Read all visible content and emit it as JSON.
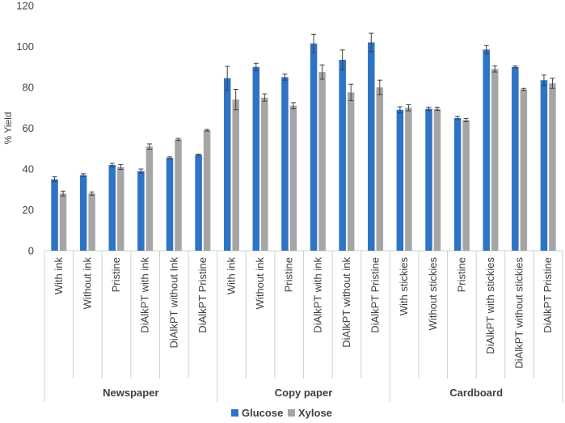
{
  "chart_data": {
    "type": "bar",
    "ylabel": "% Yield",
    "ylim": [
      0,
      120
    ],
    "yticks": [
      0,
      20,
      40,
      60,
      80,
      100,
      120
    ],
    "grid": false,
    "legend_position": "bottom-center",
    "colors": {
      "Glucose": "#2e74c6",
      "Xylose": "#a5a5a5",
      "error_bar": "#404040",
      "axis": "#d0d0d0"
    },
    "groups": [
      {
        "name": "Newspaper",
        "categories": [
          "With ink",
          "Without ink",
          "Pristine",
          "DiAlkPT with ink",
          "DiAlkPT without Ink",
          "DiAlkPT Pristine"
        ]
      },
      {
        "name": "Copy paper",
        "categories": [
          "With ink",
          "Without ink",
          "Pristine",
          "DiAlkPT with ink",
          "DiAlkPT without ink",
          "DiAlkPT Pristine"
        ]
      },
      {
        "name": "Cardboard",
        "categories": [
          "With stickies",
          "Without stickies",
          "Pristine",
          "DiAlkPT with stickies",
          "DiAlkPT without stickies",
          "DiAlkPT Pristine"
        ]
      }
    ],
    "series": [
      {
        "name": "Glucose",
        "values": [
          35,
          37,
          42,
          39,
          45.5,
          47,
          84.5,
          90,
          85,
          101.5,
          93.5,
          102,
          69,
          69.5,
          65,
          98.5,
          90,
          83.5
        ],
        "errors": [
          1.2,
          0.7,
          0.8,
          1.0,
          0.5,
          0.3,
          5.8,
          1.8,
          1.5,
          4.5,
          4.8,
          4.5,
          1.5,
          0.8,
          0.8,
          2.0,
          0.5,
          2.5
        ]
      },
      {
        "name": "Xylose",
        "values": [
          28,
          28,
          41,
          51,
          54.5,
          59,
          74,
          75,
          71,
          87.5,
          77.5,
          80,
          70,
          69.5,
          64,
          89,
          79,
          82
        ],
        "errors": [
          1.2,
          0.8,
          1.2,
          1.3,
          0.5,
          0.4,
          5.0,
          1.8,
          1.5,
          3.5,
          4.0,
          3.5,
          1.5,
          0.8,
          0.8,
          1.5,
          0.5,
          2.5
        ]
      }
    ]
  }
}
